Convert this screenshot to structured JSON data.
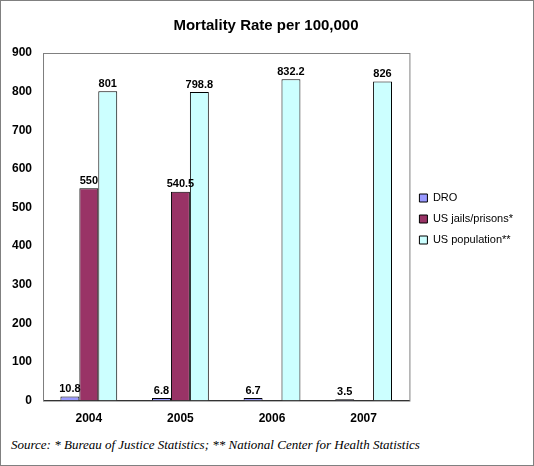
{
  "chart_data": {
    "type": "bar",
    "title": "Mortality Rate per 100,000",
    "annotation": "Source:  * Bureau of Justice Statistics; ** National Center for Health Statistics",
    "categories": [
      "2004",
      "2005",
      "2006",
      "2007"
    ],
    "series": [
      {
        "name": "DRO",
        "color": "#9999ff",
        "values": [
          10.8,
          6.8,
          6.7,
          3.5
        ]
      },
      {
        "name": "US jails/prisons*",
        "color": "#993366",
        "values": [
          550,
          540.5,
          null,
          null
        ]
      },
      {
        "name": "US population**",
        "color": "#ccffff",
        "values": [
          801,
          798.8,
          832.2,
          826
        ]
      }
    ],
    "ylim": [
      0,
      900
    ],
    "yticks": [
      0,
      100,
      200,
      300,
      400,
      500,
      600,
      700,
      800,
      900
    ],
    "grid": false,
    "legend": "right",
    "data_labels": true
  }
}
